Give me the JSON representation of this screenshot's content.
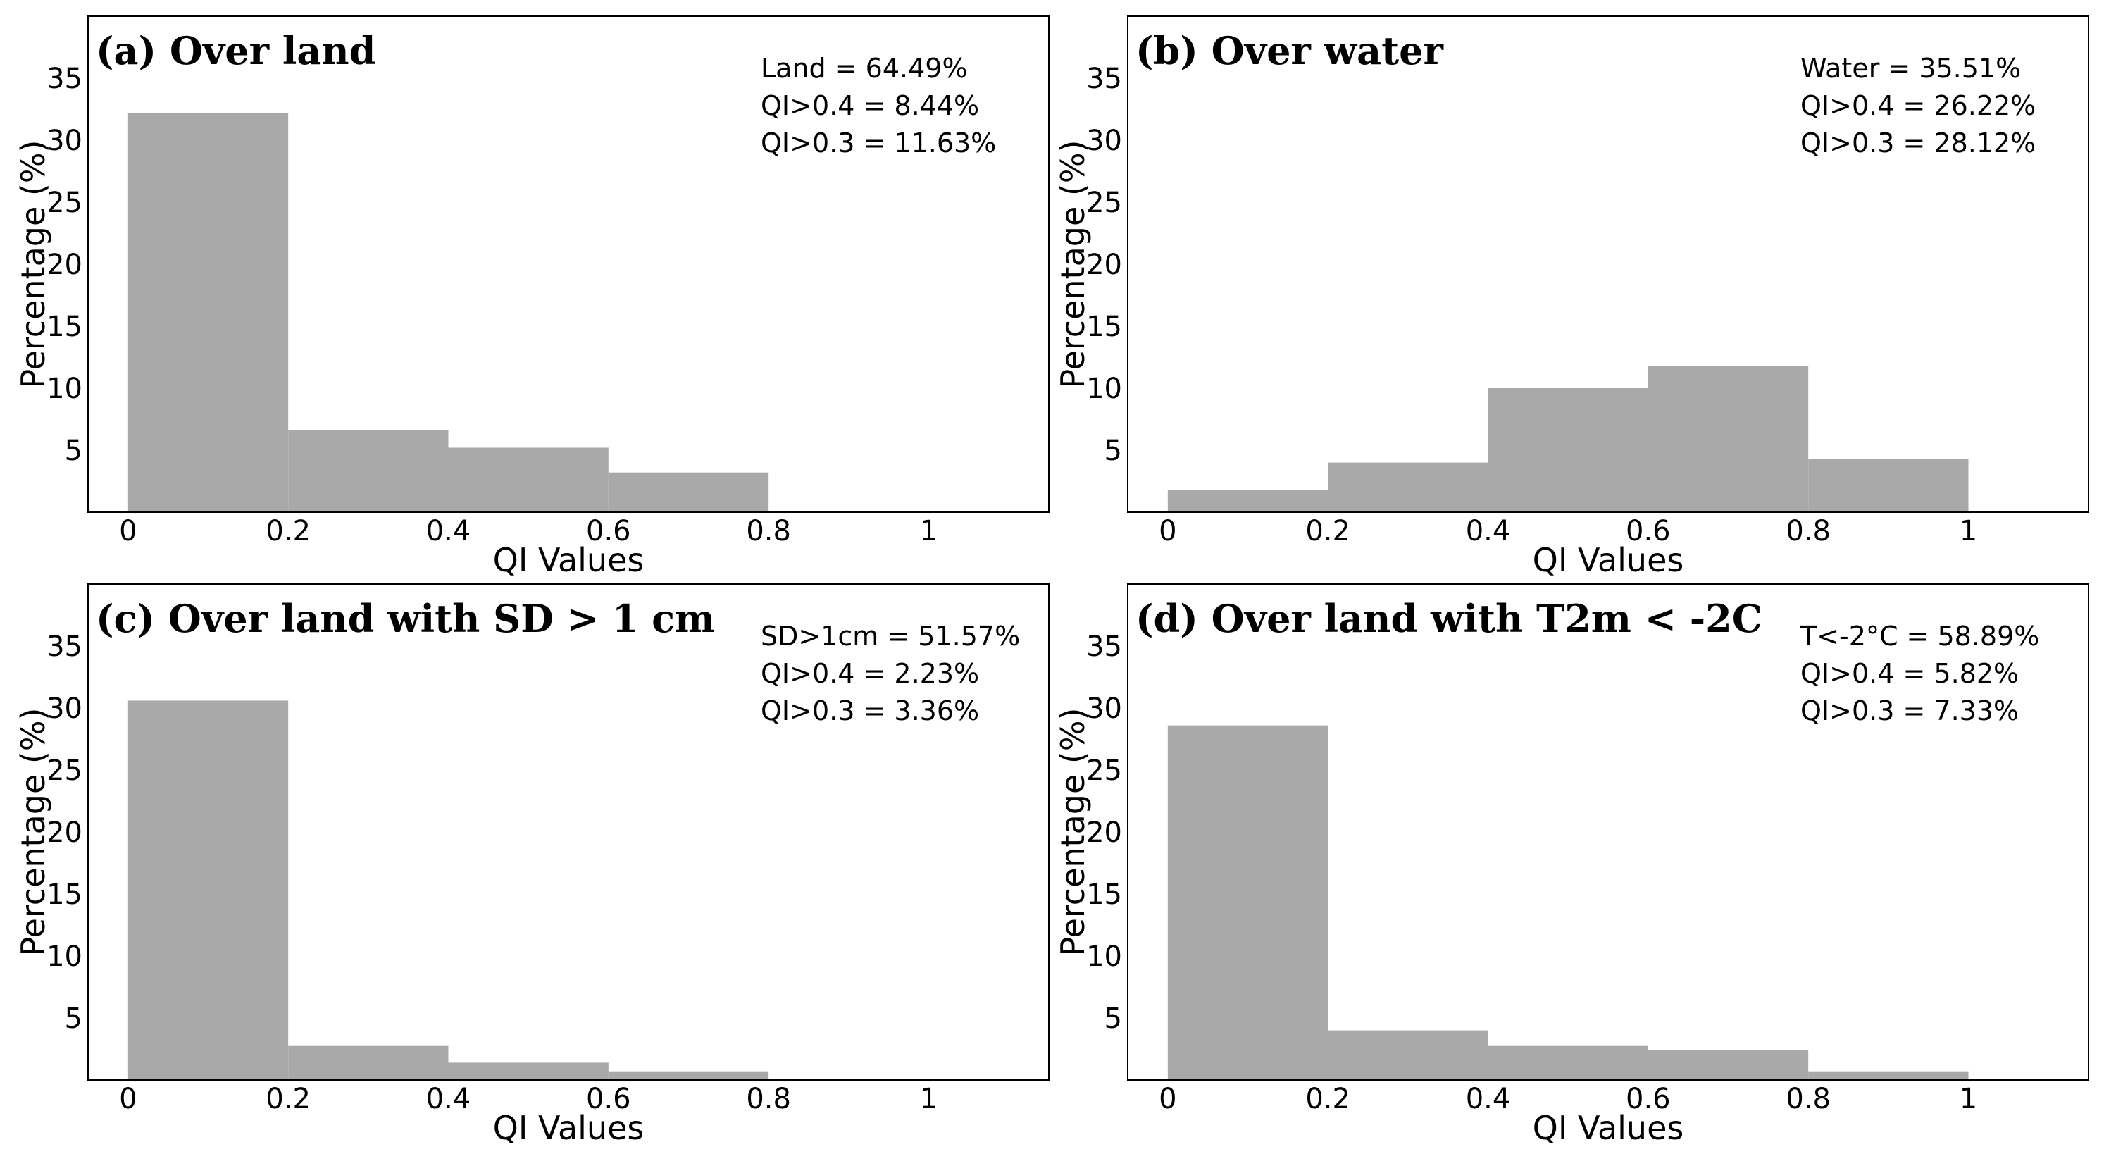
{
  "chart_data": [
    {
      "type": "bar",
      "title": "(a) Over land",
      "xlabel": "QI Values",
      "ylabel": "Percentage (%)",
      "bin_edges": [
        0,
        0.2,
        0.4,
        0.6,
        0.8,
        1.0
      ],
      "values": [
        32.2,
        6.6,
        5.2,
        3.2,
        0.0
      ],
      "xlim": [
        -0.05,
        1.15
      ],
      "ylim": [
        0,
        40
      ],
      "xticks": [
        0,
        0.2,
        0.4,
        0.6,
        0.8,
        1
      ],
      "xtick_labels": [
        "0",
        "0.2",
        "0.4",
        "0.6",
        "0.8",
        "1"
      ],
      "yticks": [
        5,
        10,
        15,
        20,
        25,
        30,
        35
      ],
      "ytick_labels": [
        "5",
        "10",
        "15",
        "20",
        "25",
        "30",
        "35"
      ],
      "annotations": [
        "Land = 64.49%",
        "QI>0.4 = 8.44%",
        "QI>0.3 = 11.63%"
      ],
      "bar_color": "#a9a9a9"
    },
    {
      "type": "bar",
      "title": "(b) Over water",
      "xlabel": "QI Values",
      "ylabel": "Percentage (%)",
      "bin_edges": [
        0,
        0.2,
        0.4,
        0.6,
        0.8,
        1.0
      ],
      "values": [
        1.8,
        4.0,
        10.0,
        11.8,
        4.3
      ],
      "xlim": [
        -0.05,
        1.15
      ],
      "ylim": [
        0,
        40
      ],
      "xticks": [
        0,
        0.2,
        0.4,
        0.6,
        0.8,
        1
      ],
      "xtick_labels": [
        "0",
        "0.2",
        "0.4",
        "0.6",
        "0.8",
        "1"
      ],
      "yticks": [
        5,
        10,
        15,
        20,
        25,
        30,
        35
      ],
      "ytick_labels": [
        "5",
        "10",
        "15",
        "20",
        "25",
        "30",
        "35"
      ],
      "annotations": [
        "Water = 35.51%",
        "QI>0.4 = 26.22%",
        "QI>0.3 = 28.12%"
      ],
      "bar_color": "#a9a9a9"
    },
    {
      "type": "bar",
      "title": "(c) Over land with SD > 1 cm",
      "xlabel": "QI Values",
      "ylabel": "Percentage (%)",
      "bin_edges": [
        0,
        0.2,
        0.4,
        0.6,
        0.8,
        1.0
      ],
      "values": [
        30.6,
        2.8,
        1.4,
        0.7,
        0.0
      ],
      "xlim": [
        -0.05,
        1.15
      ],
      "ylim": [
        0,
        40
      ],
      "xticks": [
        0,
        0.2,
        0.4,
        0.6,
        0.8,
        1
      ],
      "xtick_labels": [
        "0",
        "0.2",
        "0.4",
        "0.6",
        "0.8",
        "1"
      ],
      "yticks": [
        5,
        10,
        15,
        20,
        25,
        30,
        35
      ],
      "ytick_labels": [
        "5",
        "10",
        "15",
        "20",
        "25",
        "30",
        "35"
      ],
      "annotations": [
        "SD>1cm = 51.57%",
        "QI>0.4 = 2.23%",
        "QI>0.3 = 3.36%"
      ],
      "bar_color": "#a9a9a9"
    },
    {
      "type": "bar",
      "title": "(d) Over land with T2m < -2C",
      "xlabel": "QI Values",
      "ylabel": "Percentage (%)",
      "bin_edges": [
        0,
        0.2,
        0.4,
        0.6,
        0.8,
        1.0
      ],
      "values": [
        28.6,
        4.0,
        2.8,
        2.4,
        0.7
      ],
      "xlim": [
        -0.05,
        1.15
      ],
      "ylim": [
        0,
        40
      ],
      "xticks": [
        0,
        0.2,
        0.4,
        0.6,
        0.8,
        1
      ],
      "xtick_labels": [
        "0",
        "0.2",
        "0.4",
        "0.6",
        "0.8",
        "1"
      ],
      "yticks": [
        5,
        10,
        15,
        20,
        25,
        30,
        35
      ],
      "ytick_labels": [
        "5",
        "10",
        "15",
        "20",
        "25",
        "30",
        "35"
      ],
      "annotations": [
        "T<-2°C = 58.89%",
        "QI>0.4 = 5.82%",
        "QI>0.3 = 7.33%"
      ],
      "bar_color": "#a9a9a9"
    }
  ]
}
